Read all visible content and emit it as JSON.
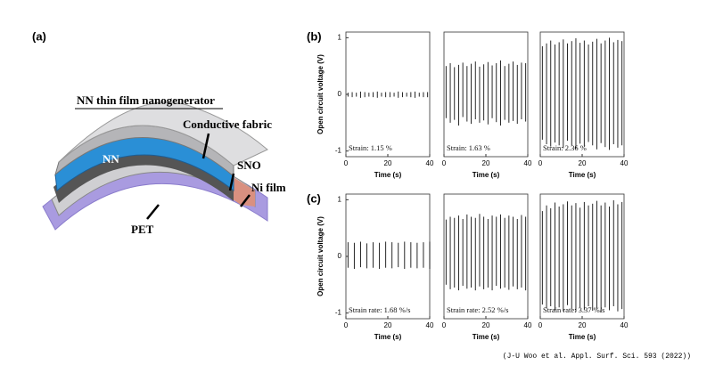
{
  "panel_a": {
    "label": "(a)",
    "title": "NN thin film nanogenerator",
    "labels": [
      "Conductive fabric",
      "NN",
      "SNO",
      "Ni film",
      "PET"
    ]
  },
  "panel_labels": [
    "(b)",
    "(c)"
  ],
  "chart_data": [
    {
      "type": "spikes",
      "x_label": "Time (s)",
      "y_label": "Open circuit voltage (V)",
      "annotation": "Strain: 1.15 %",
      "xlim": [
        0,
        40
      ],
      "xticks": [
        0,
        20,
        40
      ],
      "ylim": [
        -1.1,
        1.1
      ],
      "yticks": [
        -1,
        0,
        1
      ],
      "color": "#111111",
      "x": [
        1,
        3,
        5,
        7,
        9,
        11,
        13,
        15,
        17,
        19,
        21,
        23,
        25,
        27,
        29,
        31,
        33,
        35,
        37,
        39
      ],
      "series": [
        {
          "values": [
            0.03,
            0.04,
            0.03,
            0.05,
            0.04,
            0.03,
            0.04,
            0.05,
            0.03,
            0.04,
            0.04,
            0.03,
            0.05,
            0.04,
            0.03,
            0.04,
            0.05,
            0.03,
            0.04,
            0.04
          ]
        },
        {
          "values": [
            -0.04,
            -0.05,
            -0.04,
            -0.06,
            -0.05,
            -0.04,
            -0.05,
            -0.06,
            -0.04,
            -0.05,
            -0.05,
            -0.04,
            -0.06,
            -0.05,
            -0.04,
            -0.05,
            -0.06,
            -0.04,
            -0.05,
            -0.05
          ]
        }
      ]
    },
    {
      "type": "spikes",
      "x_label": "Time (s)",
      "annotation": "Strain: 1.63 %",
      "xlim": [
        0,
        40
      ],
      "xticks": [
        0,
        20,
        40
      ],
      "ylim": [
        -1.1,
        1.1
      ],
      "color": "#111111",
      "x": [
        1,
        3,
        5,
        7,
        9,
        11,
        13,
        15,
        17,
        19,
        21,
        23,
        25,
        27,
        29,
        31,
        33,
        35,
        37,
        39
      ],
      "series": [
        {
          "values": [
            0.5,
            0.55,
            0.48,
            0.52,
            0.56,
            0.5,
            0.54,
            0.58,
            0.49,
            0.53,
            0.57,
            0.51,
            0.55,
            0.6,
            0.5,
            0.54,
            0.58,
            0.52,
            0.56,
            0.55
          ]
        },
        {
          "values": [
            -0.42,
            -0.5,
            -0.45,
            -0.55,
            -0.4,
            -0.48,
            -0.52,
            -0.44,
            -0.5,
            -0.46,
            -0.53,
            -0.42,
            -0.49,
            -0.55,
            -0.45,
            -0.5,
            -0.47,
            -0.52,
            -0.44,
            -0.48
          ]
        }
      ]
    },
    {
      "type": "spikes",
      "x_label": "Time (s)",
      "annotation": "Strain: 2.36 %",
      "xlim": [
        0,
        40
      ],
      "xticks": [
        0,
        20,
        40
      ],
      "ylim": [
        -1.1,
        1.1
      ],
      "color": "#111111",
      "x": [
        1,
        3,
        5,
        7,
        9,
        11,
        13,
        15,
        17,
        19,
        21,
        23,
        25,
        27,
        29,
        31,
        33,
        35,
        37,
        39
      ],
      "series": [
        {
          "values": [
            0.85,
            0.9,
            0.95,
            0.88,
            0.92,
            0.97,
            0.9,
            0.94,
            0.99,
            0.91,
            0.95,
            0.88,
            0.93,
            0.98,
            0.9,
            0.95,
            1.0,
            0.92,
            0.96,
            0.94
          ]
        },
        {
          "values": [
            -0.8,
            -0.88,
            -0.92,
            -0.85,
            -0.9,
            -0.95,
            -0.82,
            -0.9,
            -0.96,
            -0.87,
            -0.92,
            -0.84,
            -0.9,
            -0.97,
            -0.86,
            -0.93,
            -0.98,
            -0.88,
            -0.94,
            -0.9
          ]
        }
      ]
    },
    {
      "type": "spikes",
      "x_label": "Time (s)",
      "y_label": "Open circuit voltage (V)",
      "annotation": "Strain rate: 1.68 %/s",
      "xlim": [
        0,
        40
      ],
      "xticks": [
        0,
        20,
        40
      ],
      "ylim": [
        -1.1,
        1.1
      ],
      "yticks": [
        -1,
        0,
        1
      ],
      "color": "#111111",
      "x": [
        1,
        4,
        7,
        10,
        13,
        16,
        19,
        22,
        25,
        28,
        31,
        34,
        37,
        40
      ],
      "series": [
        {
          "values": [
            0.25,
            0.24,
            0.26,
            0.23,
            0.25,
            0.24,
            0.26,
            0.25,
            0.24,
            0.26,
            0.25,
            0.24,
            0.25,
            0.26
          ]
        },
        {
          "values": [
            -0.2,
            -0.22,
            -0.19,
            -0.21,
            -0.2,
            -0.22,
            -0.2,
            -0.21,
            -0.19,
            -0.22,
            -0.2,
            -0.21,
            -0.2,
            -0.22
          ]
        }
      ]
    },
    {
      "type": "spikes",
      "x_label": "Time (s)",
      "annotation": "Strain rate: 2.52 %/s",
      "xlim": [
        0,
        40
      ],
      "xticks": [
        0,
        20,
        40
      ],
      "ylim": [
        -1.1,
        1.1
      ],
      "color": "#111111",
      "x": [
        1,
        3,
        5,
        7,
        9,
        11,
        13,
        15,
        17,
        19,
        21,
        23,
        25,
        27,
        29,
        31,
        33,
        35,
        37,
        39
      ],
      "series": [
        {
          "values": [
            0.65,
            0.7,
            0.68,
            0.72,
            0.66,
            0.74,
            0.7,
            0.68,
            0.75,
            0.7,
            0.66,
            0.72,
            0.7,
            0.74,
            0.68,
            0.72,
            0.7,
            0.66,
            0.73,
            0.7
          ]
        },
        {
          "values": [
            -0.5,
            -0.58,
            -0.55,
            -0.6,
            -0.52,
            -0.57,
            -0.55,
            -0.6,
            -0.53,
            -0.58,
            -0.55,
            -0.6,
            -0.52,
            -0.57,
            -0.55,
            -0.59,
            -0.53,
            -0.58,
            -0.55,
            -0.6
          ]
        }
      ]
    },
    {
      "type": "spikes",
      "x_label": "Time (s)",
      "annotation": "Strain rate: 3.37 %/s",
      "xlim": [
        0,
        40
      ],
      "xticks": [
        0,
        20,
        40
      ],
      "ylim": [
        -1.1,
        1.1
      ],
      "color": "#111111",
      "x": [
        1,
        3,
        5,
        7,
        9,
        11,
        13,
        15,
        17,
        19,
        21,
        23,
        25,
        27,
        29,
        31,
        33,
        35,
        37,
        39
      ],
      "series": [
        {
          "values": [
            0.8,
            0.9,
            0.85,
            0.95,
            0.88,
            0.92,
            0.97,
            0.9,
            0.94,
            0.86,
            0.96,
            0.9,
            0.93,
            0.98,
            0.9,
            0.95,
            0.88,
            0.99,
            0.92,
            0.96
          ]
        },
        {
          "values": [
            -0.85,
            -0.92,
            -0.88,
            -0.95,
            -0.9,
            -0.97,
            -0.86,
            -0.93,
            -0.98,
            -0.9,
            -0.95,
            -0.88,
            -0.96,
            -0.92,
            -0.99,
            -0.9,
            -0.95,
            -0.88,
            -0.97,
            -0.93
          ]
        }
      ]
    }
  ],
  "citation": "(J-U Woo et al. Appl. Surf. Sci. 593 (2022))"
}
